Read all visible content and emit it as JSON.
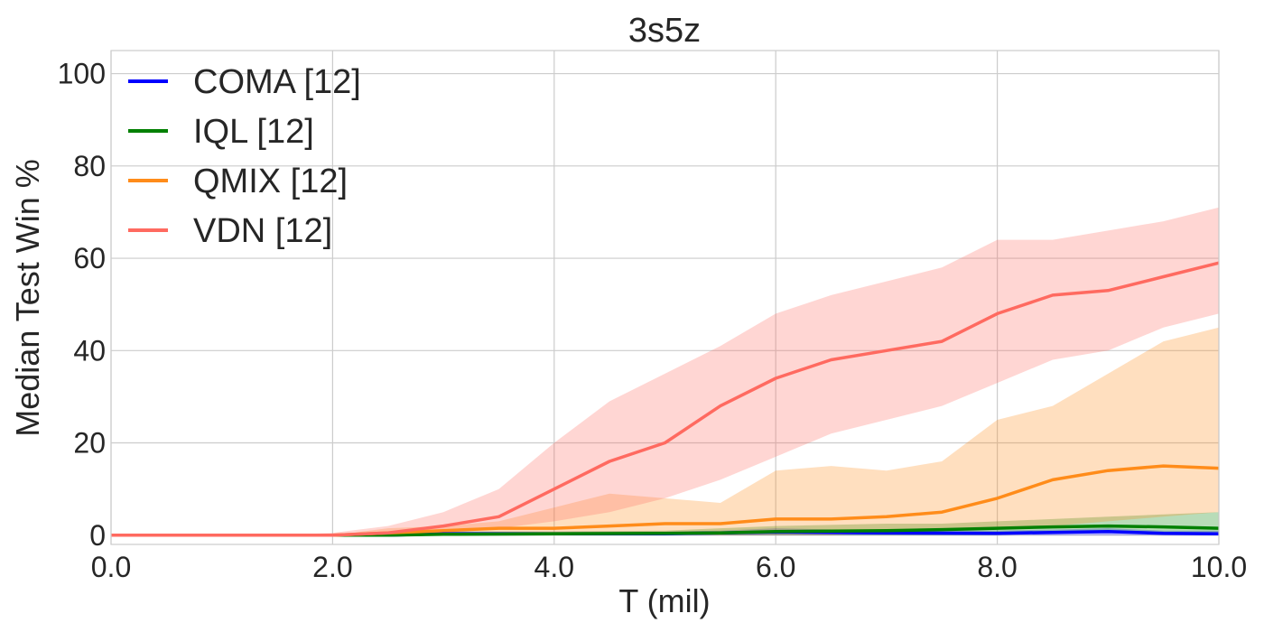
{
  "chart_data": {
    "type": "line",
    "title": "3s5z",
    "xlabel": "T (mil)",
    "ylabel": "Median Test Win %",
    "xlim": [
      0,
      10
    ],
    "ylim": [
      -2,
      105
    ],
    "xticks": [
      0,
      2,
      4,
      6,
      8,
      10
    ],
    "xtick_labels": [
      "0.0",
      "2.0",
      "4.0",
      "6.0",
      "8.0",
      "10.0"
    ],
    "yticks": [
      0,
      20,
      40,
      60,
      80,
      100
    ],
    "ytick_labels": [
      "0",
      "20",
      "40",
      "60",
      "80",
      "100"
    ],
    "grid": true,
    "legend_position": "top-left",
    "series": [
      {
        "name": "COMA [12]",
        "color": "#0000ff",
        "x": [
          0,
          1,
          2,
          2.5,
          3,
          4,
          5,
          5.5,
          6,
          7,
          8,
          8.5,
          9,
          9.5,
          10
        ],
        "y": [
          0,
          0,
          0,
          0,
          0.3,
          0.3,
          0.3,
          0.5,
          0.7,
          0.5,
          0.4,
          0.6,
          0.8,
          0.4,
          0.3
        ],
        "band_low": [
          0,
          0,
          0,
          0,
          0,
          0,
          0,
          0,
          0,
          0,
          0,
          0,
          0,
          0,
          0
        ],
        "band_high": [
          0,
          0,
          0,
          0.5,
          0.8,
          0.8,
          0.8,
          1,
          1.5,
          1,
          1,
          1.2,
          1.5,
          1,
          1
        ]
      },
      {
        "name": "IQL [12]",
        "color": "#008000",
        "x": [
          0,
          1,
          2,
          2.5,
          3,
          4,
          5,
          5.5,
          6,
          7,
          7.5,
          8,
          8.5,
          9,
          9.5,
          10
        ],
        "y": [
          0,
          0,
          0,
          0,
          0.2,
          0.3,
          0.4,
          0.5,
          0.8,
          1,
          1.2,
          1.5,
          1.8,
          2,
          1.8,
          1.5
        ],
        "band_low": [
          0,
          0,
          0,
          0,
          0,
          0,
          0,
          0,
          0,
          0,
          0,
          0,
          0.5,
          0.5,
          0.5,
          0.5
        ],
        "band_high": [
          0,
          0,
          0,
          0.5,
          0.8,
          0.8,
          1,
          1.5,
          2,
          2.5,
          2.5,
          3,
          3.5,
          4,
          4.5,
          5
        ]
      },
      {
        "name": "QMIX [12]",
        "color": "#ff8c1a",
        "x": [
          0,
          0.5,
          1,
          1.5,
          2,
          2.5,
          3,
          3.5,
          4,
          4.5,
          5,
          5.5,
          6,
          6.5,
          7,
          7.5,
          8,
          8.5,
          9,
          9.5,
          10
        ],
        "y": [
          0,
          0,
          0,
          0,
          0,
          0.5,
          1,
          1.5,
          1.5,
          2,
          2.5,
          2.5,
          3.5,
          3.5,
          4,
          5,
          8,
          12,
          14,
          15,
          14.5
        ],
        "band_low": [
          0,
          0,
          0,
          0,
          0,
          0,
          0,
          0,
          0,
          0,
          0,
          0,
          0,
          0,
          0.5,
          1,
          1.5,
          2,
          3,
          4,
          5
        ],
        "band_high": [
          0,
          0,
          0,
          0,
          0,
          1.5,
          2,
          3,
          6,
          9,
          8,
          7,
          14,
          15,
          14,
          16,
          25,
          28,
          35,
          42,
          45
        ]
      },
      {
        "name": "VDN [12]",
        "color": "#ff6a60",
        "x": [
          0,
          0.5,
          1,
          1.5,
          2,
          2.5,
          3,
          3.5,
          4,
          4.5,
          5,
          5.5,
          6,
          6.5,
          7,
          7.5,
          8,
          8.5,
          9,
          9.5,
          10
        ],
        "y": [
          0,
          0,
          0,
          0,
          0,
          0.5,
          2,
          4,
          10,
          16,
          20,
          28,
          34,
          38,
          40,
          42,
          48,
          52,
          53,
          56,
          59
        ],
        "band_low": [
          0,
          0,
          0,
          0,
          0,
          0,
          0.5,
          1.5,
          3,
          5,
          8,
          12,
          17,
          22,
          25,
          28,
          33,
          38,
          40,
          45,
          48
        ],
        "band_high": [
          0,
          0,
          0,
          0,
          0.5,
          2,
          5,
          10,
          20,
          29,
          35,
          41,
          48,
          52,
          55,
          58,
          64,
          64,
          66,
          68,
          71
        ]
      }
    ]
  }
}
